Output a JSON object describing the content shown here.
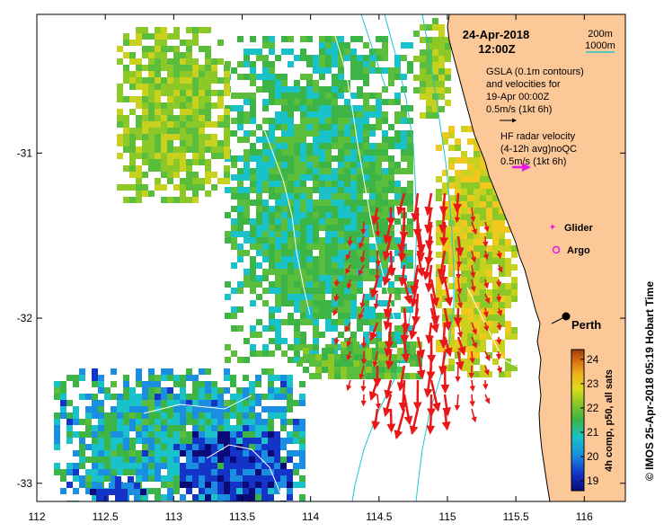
{
  "title": {
    "date": "24-Apr-2018",
    "time": "12:00Z"
  },
  "depth_legend": {
    "label_200": "200m",
    "label_1000": "1000m",
    "color_200": "#000000",
    "color_1000": "#19c8d2"
  },
  "gsla_legend": {
    "line1": "GSLA (0.1m contours)",
    "line2": "and velocities for",
    "line3": "19-Apr 00:00Z",
    "scale": "0.5m/s (1kt 6h)"
  },
  "hf_legend": {
    "line1": "HF radar velocity",
    "line2": "(4-12h avg)noQC",
    "scale": "0.5m/s (1kt 6h)",
    "color": "#e619e6"
  },
  "markers": {
    "glider": "Glider",
    "argo": "Argo",
    "city": "Perth"
  },
  "colorbar": {
    "title": "4h comp, p50, all sats",
    "ticks": [
      "24",
      "23",
      "22",
      "21",
      "20",
      "19"
    ],
    "tick_values": [
      24,
      23,
      22,
      21,
      20,
      19
    ],
    "vmin": 18.6,
    "vmax": 24.4
  },
  "x_axis": {
    "ticks": [
      "112",
      "112.5",
      "113",
      "113.5",
      "114",
      "114.5",
      "115",
      "115.5",
      "116"
    ],
    "values": [
      112,
      112.5,
      113,
      113.5,
      114,
      114.5,
      115,
      115.5,
      116
    ]
  },
  "y_axis": {
    "ticks": [
      "-31",
      "-32",
      "-33"
    ],
    "values": [
      -31,
      -32,
      -33
    ]
  },
  "extent": {
    "lon_min": 112,
    "lon_max": 116.3,
    "lat_top": -30.16,
    "lat_bottom": -33.11
  },
  "credit": "© IMOS 25-Apr-2018 05:19 Hobart Time",
  "colors": {
    "land": "#fcc898",
    "arrow": "#e81818",
    "magenta": "#e619e6"
  }
}
